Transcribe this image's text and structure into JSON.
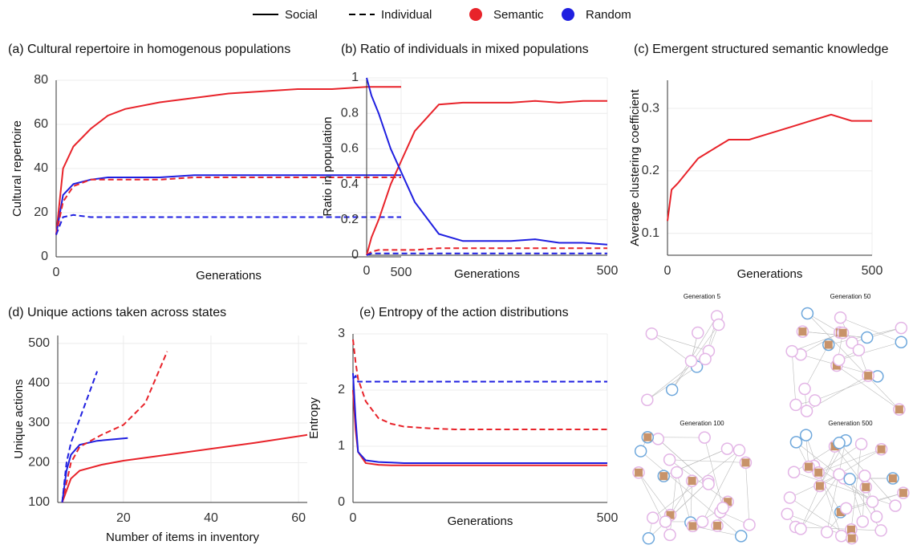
{
  "legend": {
    "entries": [
      {
        "name": "Social",
        "dash": "solid",
        "color": "#000000"
      },
      {
        "name": "Individual",
        "dash": "dashed",
        "color": "#000000"
      },
      {
        "name": "Semantic",
        "marker": "circle",
        "color": "#e8232a"
      },
      {
        "name": "Random",
        "marker": "circle",
        "color": "#1f1fe0"
      }
    ]
  },
  "chart_data": [
    {
      "type": "line",
      "title": "(a) Cultural repertoire in homogenous populations",
      "x_label": "Generations",
      "y_label": "Cultural repertoire",
      "xlim": [
        0,
        500
      ],
      "xticks": [
        0,
        500
      ],
      "ylim": [
        0,
        80
      ],
      "yticks": [
        0,
        20,
        40,
        60,
        80
      ],
      "grid": true,
      "x": [
        0,
        10,
        25,
        50,
        75,
        100,
        150,
        200,
        250,
        300,
        350,
        400,
        450,
        500
      ],
      "series": [
        {
          "color": "#e8232a",
          "dash": "solid",
          "values": [
            10,
            40,
            50,
            58,
            64,
            67,
            70,
            72,
            74,
            75,
            76,
            76,
            77,
            77
          ]
        },
        {
          "color": "#1f1fe0",
          "dash": "solid",
          "values": [
            10,
            28,
            33,
            35,
            36,
            36,
            36,
            37,
            37,
            37,
            37,
            37,
            37,
            37
          ]
        },
        {
          "color": "#e8232a",
          "dash": "dashed",
          "values": [
            10,
            25,
            32,
            35,
            35,
            35,
            35,
            36,
            36,
            36,
            36,
            36,
            36,
            36
          ]
        },
        {
          "color": "#1f1fe0",
          "dash": "dashed",
          "values": [
            10,
            18,
            19,
            18,
            18,
            18,
            18,
            18,
            18,
            18,
            18,
            18,
            18,
            18
          ]
        }
      ]
    },
    {
      "type": "line",
      "title": "(b) Ratio of individuals in mixed populations",
      "x_label": "Generations",
      "y_label": "Ratio in population",
      "xlim": [
        0,
        500
      ],
      "xticks": [
        0,
        500
      ],
      "ylim": [
        0,
        1
      ],
      "yticks": [
        0,
        0.2,
        0.4,
        0.6,
        0.8,
        1
      ],
      "grid": true,
      "x": [
        0,
        10,
        25,
        50,
        75,
        100,
        150,
        200,
        250,
        300,
        350,
        400,
        450,
        500
      ],
      "series": [
        {
          "color": "#e8232a",
          "dash": "solid",
          "values": [
            0,
            0.1,
            0.2,
            0.4,
            0.55,
            0.7,
            0.85,
            0.86,
            0.86,
            0.86,
            0.87,
            0.86,
            0.87,
            0.87
          ]
        },
        {
          "color": "#1f1fe0",
          "dash": "solid",
          "values": [
            1,
            0.9,
            0.8,
            0.6,
            0.45,
            0.3,
            0.12,
            0.08,
            0.08,
            0.08,
            0.09,
            0.07,
            0.07,
            0.06
          ]
        },
        {
          "color": "#e8232a",
          "dash": "dashed",
          "values": [
            0,
            0.02,
            0.03,
            0.03,
            0.03,
            0.03,
            0.04,
            0.04,
            0.04,
            0.04,
            0.04,
            0.04,
            0.04,
            0.04
          ]
        },
        {
          "color": "#1f1fe0",
          "dash": "dashed",
          "values": [
            0,
            0.01,
            0.01,
            0.01,
            0.01,
            0.01,
            0.01,
            0.01,
            0.01,
            0.01,
            0.01,
            0.01,
            0.01,
            0.01
          ]
        }
      ]
    },
    {
      "type": "line",
      "title": "(c) Emergent structured semantic knowledge",
      "x_label": "Generations",
      "y_label": "Average clustering coefficient",
      "xlim": [
        0,
        500
      ],
      "xticks": [
        0,
        500
      ],
      "ylim": [
        0.065,
        0.345
      ],
      "yticks": [
        0.1,
        0.2,
        0.3
      ],
      "grid": true,
      "x": [
        0,
        10,
        25,
        50,
        75,
        100,
        150,
        200,
        250,
        300,
        350,
        400,
        450,
        500
      ],
      "series": [
        {
          "color": "#e8232a",
          "dash": "solid",
          "values": [
            0.12,
            0.17,
            0.18,
            0.2,
            0.22,
            0.23,
            0.25,
            0.25,
            0.26,
            0.27,
            0.28,
            0.29,
            0.28,
            0.28
          ]
        }
      ]
    },
    {
      "type": "line",
      "title": "(d) Unique actions taken across states",
      "x_label": "Number of items in inventory",
      "y_label": "Unique actions",
      "xlim": [
        5,
        62
      ],
      "xticks": [
        20,
        40,
        60
      ],
      "ylim": [
        100,
        520
      ],
      "yticks": [
        100,
        200,
        300,
        400,
        500
      ],
      "grid": true,
      "series": [
        {
          "color": "#e8232a",
          "dash": "solid",
          "x": [
            6,
            8,
            10,
            15,
            20,
            30,
            40,
            50,
            62
          ],
          "values": [
            100,
            160,
            180,
            195,
            205,
            220,
            235,
            250,
            270
          ]
        },
        {
          "color": "#1f1fe0",
          "dash": "solid",
          "x": [
            6,
            7,
            8,
            10,
            14,
            21
          ],
          "values": [
            100,
            180,
            220,
            245,
            255,
            262
          ]
        },
        {
          "color": "#e8232a",
          "dash": "dashed",
          "x": [
            6,
            8,
            10,
            15,
            20,
            25,
            30
          ],
          "values": [
            100,
            200,
            240,
            270,
            295,
            350,
            480
          ]
        },
        {
          "color": "#1f1fe0",
          "dash": "dashed",
          "x": [
            6,
            7,
            8,
            10,
            12,
            14
          ],
          "values": [
            100,
            200,
            250,
            310,
            370,
            430
          ]
        }
      ]
    },
    {
      "type": "line",
      "title": "(e) Entropy of the action distributions",
      "x_label": "Generations",
      "y_label": "Entropy",
      "xlim": [
        0,
        500
      ],
      "xticks": [
        0,
        500
      ],
      "ylim": [
        0,
        3
      ],
      "yticks": [
        0,
        1,
        2,
        3
      ],
      "grid": true,
      "x": [
        0,
        5,
        10,
        25,
        50,
        75,
        100,
        150,
        200,
        300,
        400,
        500
      ],
      "series": [
        {
          "color": "#e8232a",
          "dash": "dashed",
          "values": [
            2.9,
            2.5,
            2.2,
            1.8,
            1.5,
            1.4,
            1.35,
            1.32,
            1.3,
            1.3,
            1.3,
            1.3
          ]
        },
        {
          "color": "#1f1fe0",
          "dash": "dashed",
          "values": [
            2.2,
            2.25,
            2.15,
            2.15,
            2.15,
            2.15,
            2.15,
            2.15,
            2.15,
            2.15,
            2.15,
            2.15
          ]
        },
        {
          "color": "#e8232a",
          "dash": "solid",
          "values": [
            2.0,
            1.3,
            0.9,
            0.7,
            0.67,
            0.66,
            0.66,
            0.66,
            0.66,
            0.66,
            0.66,
            0.66
          ]
        },
        {
          "color": "#1f1fe0",
          "dash": "solid",
          "values": [
            2.3,
            1.5,
            0.9,
            0.75,
            0.72,
            0.71,
            0.7,
            0.7,
            0.7,
            0.7,
            0.7,
            0.7
          ]
        }
      ]
    }
  ],
  "networks": [
    "Generation 5",
    "Generation 50",
    "Generation 100",
    "Generation 500"
  ]
}
